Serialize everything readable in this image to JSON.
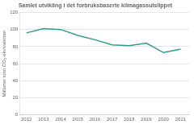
{
  "chart_data": {
    "type": "line",
    "title": "Samlet utvikling i det forbruksbaserte klimagassutslippet",
    "y_label": "Millioner tonn CO₂-ekvivalenter",
    "x": [
      2012,
      2013,
      2014,
      2015,
      2016,
      2017,
      2018,
      2019,
      2020,
      2021
    ],
    "values": [
      96,
      101,
      100,
      93,
      88,
      82,
      81,
      84,
      73,
      77
    ],
    "color": "#2a9d8f",
    "xlim": [
      2011.6,
      2021.5
    ],
    "xticks": [
      2012,
      2013,
      2014,
      2015,
      2016,
      2017,
      2018,
      2019,
      2020,
      2021
    ],
    "ylim": [
      0,
      120
    ],
    "yticks": [
      0,
      20,
      40,
      60,
      80,
      100,
      120
    ],
    "grid": "y"
  }
}
